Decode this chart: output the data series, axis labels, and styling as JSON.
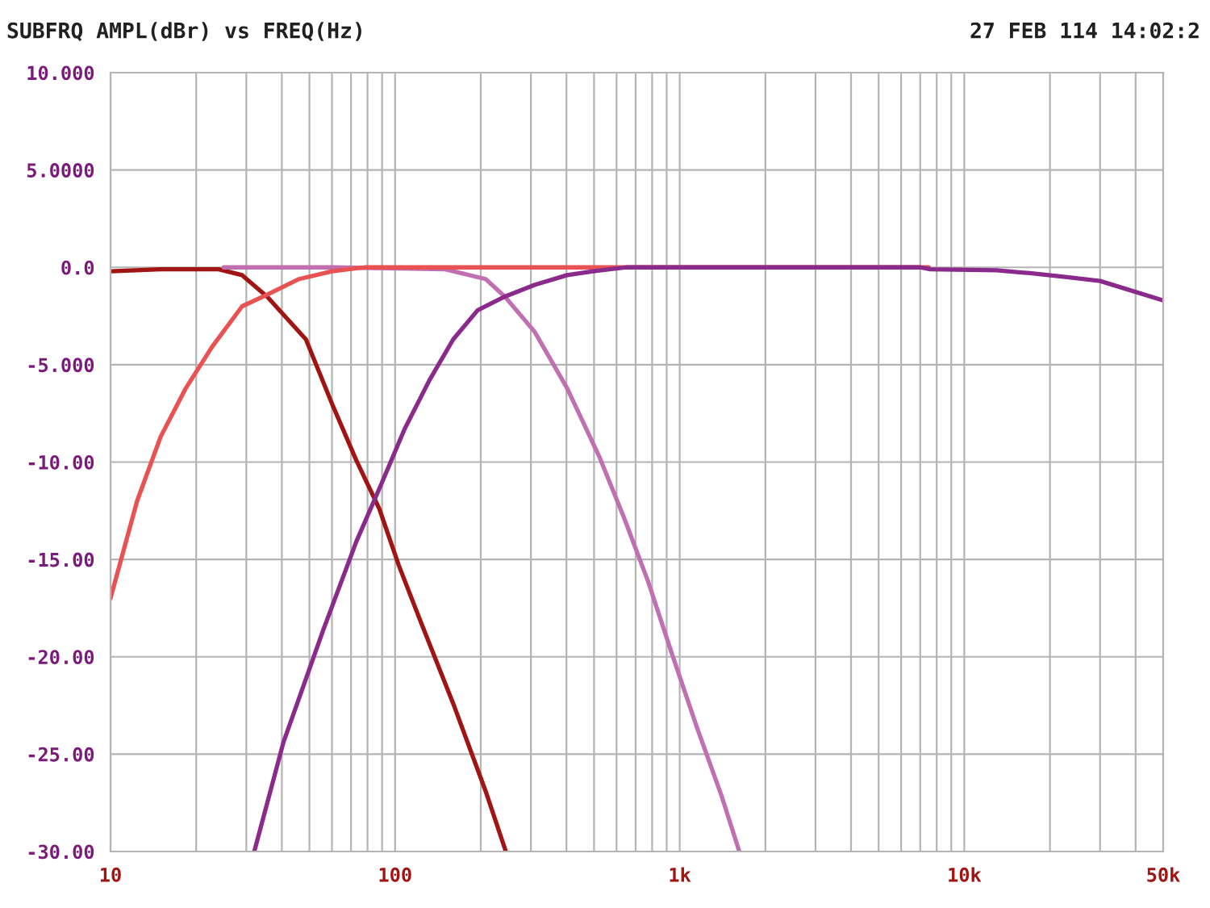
{
  "chart_data": {
    "type": "line",
    "title": "SUBFRQ AMPL(dBr) vs FREQ(Hz)",
    "annotations": [
      "27 FEB 114 14:02:2"
    ],
    "log": "x",
    "grid": true,
    "marker": "none",
    "line_style": "solid",
    "xlim": [
      10,
      50000
    ],
    "ylim": [
      -30,
      10
    ],
    "xticks": [
      10,
      {
        "value": 20,
        "label": null
      },
      {
        "value": 30,
        "label": null
      },
      {
        "value": 40,
        "label": null
      },
      {
        "value": 50,
        "label": null
      },
      {
        "value": 60,
        "label": null
      },
      {
        "value": 70,
        "label": null
      },
      {
        "value": 80,
        "label": null
      },
      {
        "value": 90,
        "label": null
      },
      100,
      {
        "value": 200,
        "label": null
      },
      {
        "value": 300,
        "label": null
      },
      {
        "value": 400,
        "label": null
      },
      {
        "value": 500,
        "label": null
      },
      {
        "value": 600,
        "label": null
      },
      {
        "value": 700,
        "label": null
      },
      {
        "value": 800,
        "label": null
      },
      {
        "value": 900,
        "label": null
      },
      {
        "value": 1000,
        "label": "1k"
      },
      {
        "value": 2000,
        "label": null
      },
      {
        "value": 3000,
        "label": null
      },
      {
        "value": 4000,
        "label": null
      },
      {
        "value": 5000,
        "label": null
      },
      {
        "value": 6000,
        "label": null
      },
      {
        "value": 7000,
        "label": null
      },
      {
        "value": 8000,
        "label": null
      },
      {
        "value": 9000,
        "label": null
      },
      {
        "value": 10000,
        "label": "10k"
      },
      {
        "value": 20000,
        "label": null
      },
      {
        "value": 30000,
        "label": null
      },
      {
        "value": 40000,
        "label": null
      },
      {
        "value": 50000,
        "label": "50k"
      }
    ],
    "yticks": [
      {
        "value": 10,
        "label": "10.000"
      },
      {
        "value": 5,
        "label": "5.0000"
      },
      {
        "value": 0,
        "label": "0.0"
      },
      {
        "value": -5,
        "label": "-5.000"
      },
      {
        "value": -10,
        "label": "-10.00"
      },
      {
        "value": -15,
        "label": "-15.00"
      },
      {
        "value": -20,
        "label": "-20.00"
      },
      {
        "value": -25,
        "label": "-25.00"
      },
      {
        "value": -30,
        "label": "-30.00"
      }
    ],
    "series": [
      {
        "color": "#a01414",
        "x": [
          10,
          15,
          20,
          24,
          29,
          35.5,
          48.6,
          60,
          73,
          88,
          103,
          123,
          160,
          208,
          245
        ],
        "values": [
          -0.2,
          -0.1,
          -0.1,
          -0.1,
          -0.4,
          -1.5,
          -3.7,
          -7.0,
          -9.9,
          -12.4,
          -15.3,
          -18.2,
          -22.4,
          -26.9,
          -30
        ]
      },
      {
        "color": "#c070b0",
        "x": [
          25,
          60,
          150,
          208,
          243,
          309,
          402,
          521,
          635,
          773,
          942,
          1148,
          1400,
          1620
        ],
        "values": [
          0,
          0,
          -0.1,
          -0.6,
          -1.5,
          -3.3,
          -6.2,
          -9.7,
          -12.8,
          -16.1,
          -19.9,
          -23.6,
          -27.1,
          -30
        ]
      },
      {
        "color": "#e85252",
        "x": [
          10,
          12.4,
          15,
          18.4,
          22.7,
          29,
          35.5,
          46,
          60,
          78,
          7500
        ],
        "values": [
          -17.0,
          -12.0,
          -8.7,
          -6.2,
          -4.1,
          -2.0,
          -1.4,
          -0.6,
          -0.2,
          0,
          0
        ]
      },
      {
        "color": "#8a2a8a",
        "x": [
          32,
          40.5,
          56,
          73,
          89,
          108,
          132,
          160,
          195,
          243,
          309,
          402,
          496,
          650,
          7000,
          7600,
          13000,
          17000,
          23000,
          30000,
          50000
        ],
        "values": [
          -30,
          -24.4,
          -18.6,
          -14.1,
          -11.2,
          -8.3,
          -5.8,
          -3.7,
          -2.2,
          -1.5,
          -0.9,
          -0.4,
          -0.2,
          0,
          0,
          -0.1,
          -0.15,
          -0.3,
          -0.5,
          -0.7,
          -1.7
        ]
      }
    ]
  }
}
